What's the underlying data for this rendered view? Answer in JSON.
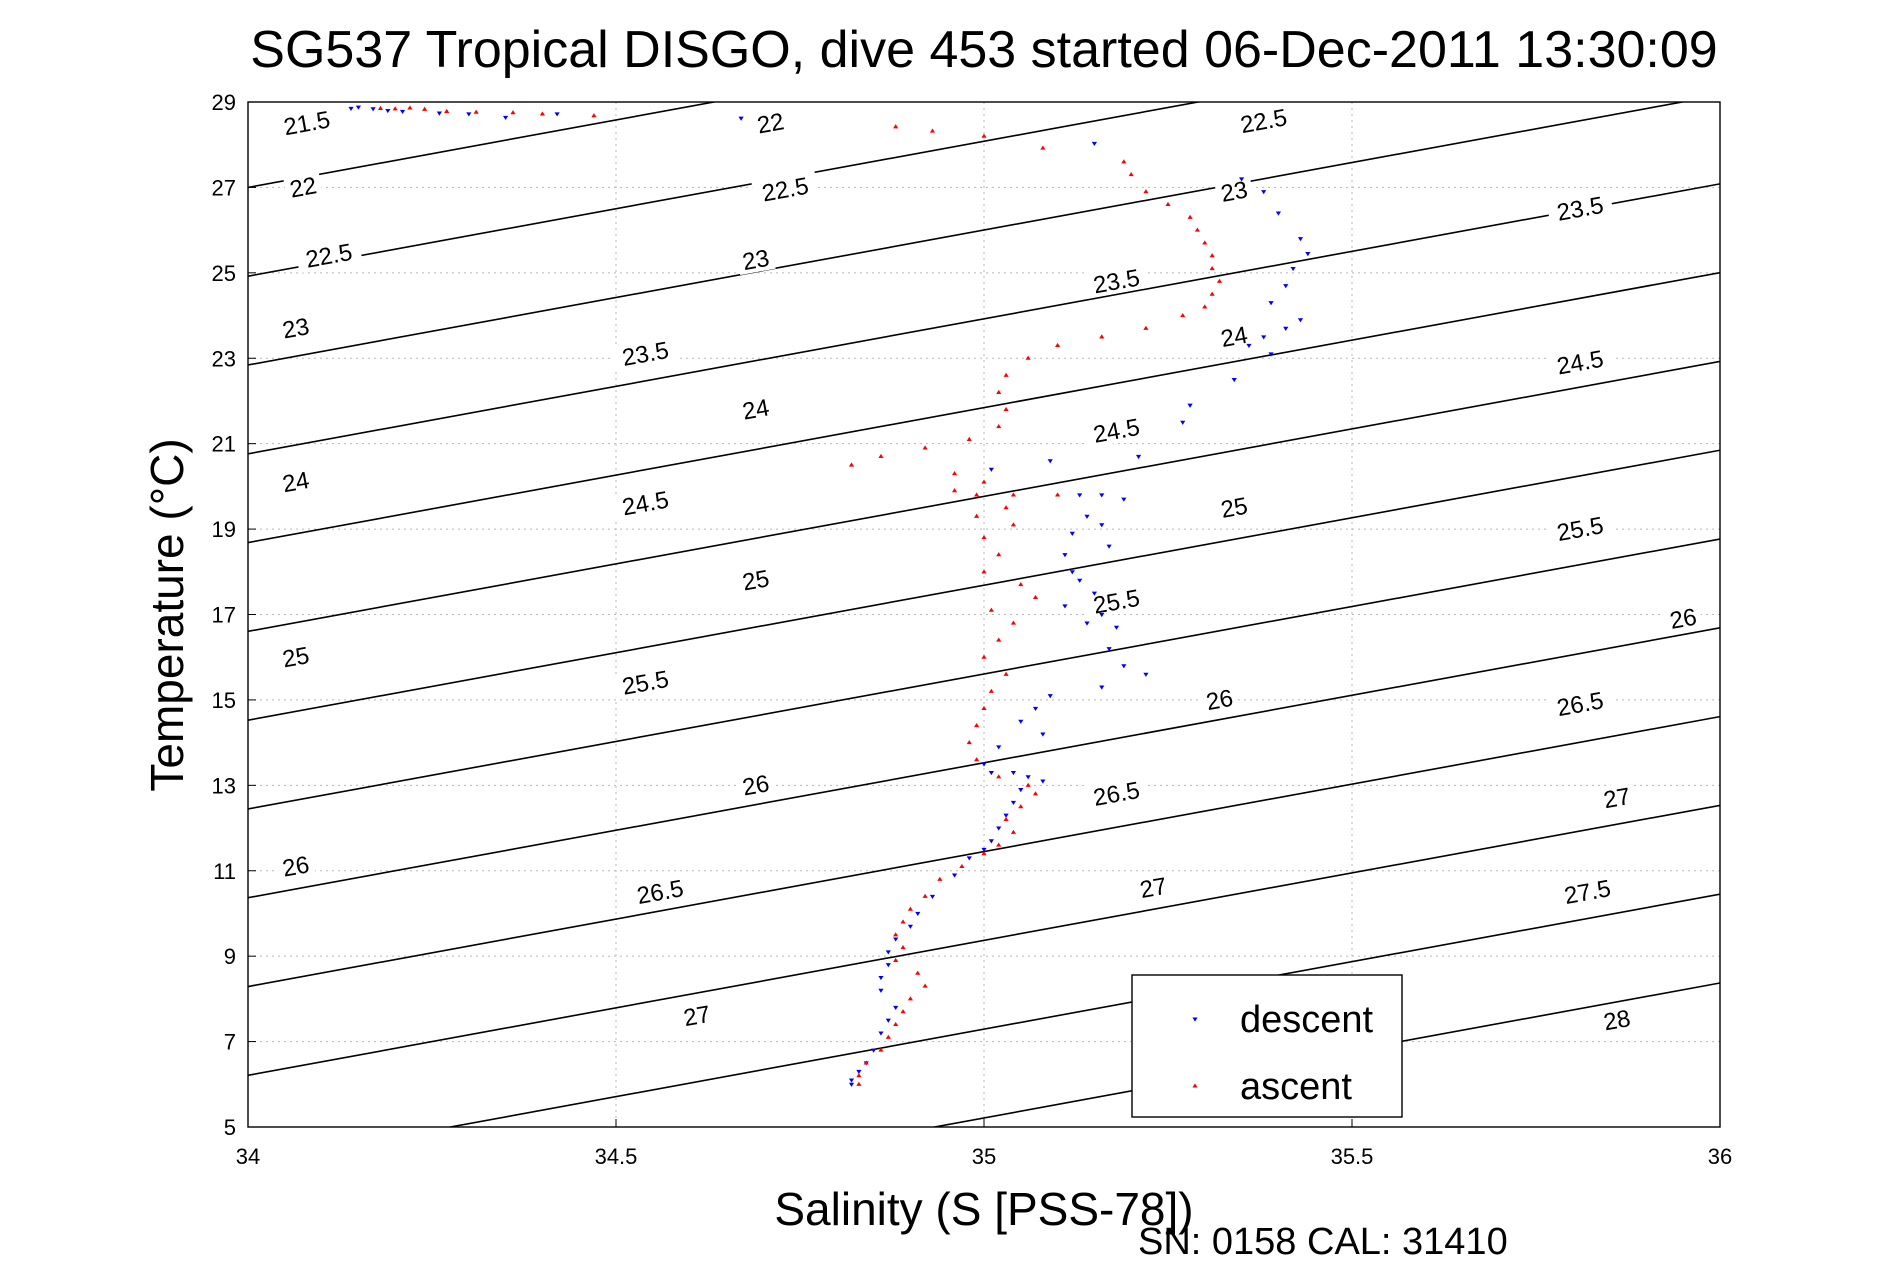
{
  "chart_data": {
    "type": "scatter",
    "title": "SG537 Tropical DISGO, dive 453 started 06-Dec-2011 13:30:09",
    "xlabel": "Salinity (S [PSS-78])",
    "ylabel": "Temperature (°C)",
    "xlim": [
      34,
      36
    ],
    "ylim": [
      5,
      29
    ],
    "xticks": [
      34,
      34.5,
      35,
      35.5,
      36
    ],
    "xtick_labels": [
      "34",
      "34.5",
      "35",
      "35.5",
      "36"
    ],
    "yticks": [
      5,
      7,
      9,
      11,
      13,
      15,
      17,
      19,
      21,
      23,
      25,
      27,
      29
    ],
    "ytick_labels": [
      "5",
      "7",
      "9",
      "11",
      "13",
      "15",
      "17",
      "19",
      "21",
      "23",
      "25",
      "27",
      "29"
    ],
    "grid": true,
    "legend": {
      "placement": "lower-right",
      "entries": [
        {
          "label": "descent",
          "color": "#0000ff",
          "marker": "triangle-down"
        },
        {
          "label": "ascent",
          "color": "#ff0000",
          "marker": "triangle-up"
        }
      ]
    },
    "contours": {
      "description": "potential density (sigma-theta) isopycnals",
      "levels": [
        21.5,
        22,
        22.5,
        23,
        23.5,
        24,
        24.5,
        25,
        25.5,
        26,
        26.5,
        27,
        27.5,
        28
      ],
      "line_color": "#000000",
      "labels": [
        {
          "text": "21.5",
          "s": 34.08,
          "t": 28.5
        },
        {
          "text": "22",
          "s": 34.075,
          "t": 27.0
        },
        {
          "text": "22",
          "s": 34.71,
          "t": 28.5
        },
        {
          "text": "22.5",
          "s": 34.11,
          "t": 25.4
        },
        {
          "text": "22.5",
          "s": 34.73,
          "t": 26.95
        },
        {
          "text": "22.5",
          "s": 35.38,
          "t": 28.55
        },
        {
          "text": "23",
          "s": 34.065,
          "t": 23.7
        },
        {
          "text": "23",
          "s": 34.69,
          "t": 25.3
        },
        {
          "text": "23",
          "s": 35.34,
          "t": 26.9
        },
        {
          "text": "23.5",
          "s": 34.54,
          "t": 23.1
        },
        {
          "text": "23.5",
          "s": 35.18,
          "t": 24.8
        },
        {
          "text": "23.5",
          "s": 35.81,
          "t": 26.5
        },
        {
          "text": "24",
          "s": 34.065,
          "t": 20.1
        },
        {
          "text": "24",
          "s": 34.69,
          "t": 21.8
        },
        {
          "text": "24",
          "s": 35.34,
          "t": 23.5
        },
        {
          "text": "24.5",
          "s": 34.54,
          "t": 19.6
        },
        {
          "text": "24.5",
          "s": 35.18,
          "t": 21.3
        },
        {
          "text": "24.5",
          "s": 35.81,
          "t": 22.9
        },
        {
          "text": "25",
          "s": 34.065,
          "t": 16.0
        },
        {
          "text": "25",
          "s": 34.69,
          "t": 17.8
        },
        {
          "text": "25",
          "s": 35.34,
          "t": 19.5
        },
        {
          "text": "25.5",
          "s": 34.54,
          "t": 15.4
        },
        {
          "text": "25.5",
          "s": 35.18,
          "t": 17.3
        },
        {
          "text": "25.5",
          "s": 35.81,
          "t": 19.0
        },
        {
          "text": "26",
          "s": 34.065,
          "t": 11.1
        },
        {
          "text": "26",
          "s": 34.69,
          "t": 13.0
        },
        {
          "text": "26",
          "s": 35.32,
          "t": 15.0
        },
        {
          "text": "26",
          "s": 35.95,
          "t": 16.9
        },
        {
          "text": "26.5",
          "s": 34.56,
          "t": 10.5
        },
        {
          "text": "26.5",
          "s": 35.18,
          "t": 12.8
        },
        {
          "text": "26.5",
          "s": 35.81,
          "t": 14.9
        },
        {
          "text": "27",
          "s": 34.61,
          "t": 7.6
        },
        {
          "text": "27",
          "s": 35.23,
          "t": 10.6
        },
        {
          "text": "27",
          "s": 35.86,
          "t": 12.7
        },
        {
          "text": "27.5",
          "s": 35.82,
          "t": 10.5
        },
        {
          "text": "28",
          "s": 35.86,
          "t": 7.5
        }
      ]
    },
    "series": [
      {
        "name": "descent",
        "color": "#0000ff",
        "marker": "triangle-down",
        "points": [
          [
            34.14,
            28.85
          ],
          [
            34.15,
            28.88
          ],
          [
            34.17,
            28.84
          ],
          [
            34.19,
            28.8
          ],
          [
            34.21,
            28.78
          ],
          [
            34.26,
            28.74
          ],
          [
            34.3,
            28.72
          ],
          [
            34.35,
            28.64
          ],
          [
            34.42,
            28.72
          ],
          [
            34.67,
            28.62
          ],
          [
            35.15,
            28.03
          ],
          [
            35.35,
            27.2
          ],
          [
            35.38,
            26.9
          ],
          [
            35.4,
            26.4
          ],
          [
            35.43,
            25.8
          ],
          [
            35.44,
            25.45
          ],
          [
            35.42,
            25.1
          ],
          [
            35.41,
            24.7
          ],
          [
            35.39,
            24.3
          ],
          [
            35.43,
            23.9
          ],
          [
            35.41,
            23.7
          ],
          [
            35.38,
            23.5
          ],
          [
            35.36,
            23.3
          ],
          [
            35.39,
            23.1
          ],
          [
            35.34,
            22.5
          ],
          [
            35.28,
            21.9
          ],
          [
            35.27,
            21.5
          ],
          [
            35.21,
            20.7
          ],
          [
            35.09,
            20.6
          ],
          [
            35.01,
            20.4
          ],
          [
            35.13,
            19.8
          ],
          [
            35.16,
            19.8
          ],
          [
            35.19,
            19.7
          ],
          [
            35.14,
            19.3
          ],
          [
            35.16,
            19.1
          ],
          [
            35.12,
            18.9
          ],
          [
            35.17,
            18.6
          ],
          [
            35.11,
            18.4
          ],
          [
            35.12,
            18.0
          ],
          [
            35.13,
            17.8
          ],
          [
            35.15,
            17.5
          ],
          [
            35.11,
            17.2
          ],
          [
            35.16,
            17.0
          ],
          [
            35.14,
            16.8
          ],
          [
            35.18,
            16.7
          ],
          [
            35.17,
            16.2
          ],
          [
            35.19,
            15.8
          ],
          [
            35.22,
            15.6
          ],
          [
            35.16,
            15.3
          ],
          [
            35.09,
            15.1
          ],
          [
            35.07,
            14.8
          ],
          [
            35.05,
            14.5
          ],
          [
            35.08,
            14.2
          ],
          [
            35.02,
            13.9
          ],
          [
            35.0,
            13.5
          ],
          [
            35.01,
            13.3
          ],
          [
            35.04,
            13.3
          ],
          [
            35.06,
            13.2
          ],
          [
            35.08,
            13.1
          ],
          [
            35.05,
            12.9
          ],
          [
            35.04,
            12.6
          ],
          [
            35.03,
            12.3
          ],
          [
            35.02,
            12.0
          ],
          [
            35.01,
            11.7
          ],
          [
            35.0,
            11.5
          ],
          [
            34.98,
            11.3
          ],
          [
            34.96,
            10.9
          ],
          [
            34.93,
            10.4
          ],
          [
            34.91,
            10.0
          ],
          [
            34.9,
            9.7
          ],
          [
            34.88,
            9.4
          ],
          [
            34.87,
            9.1
          ],
          [
            34.87,
            8.8
          ],
          [
            34.86,
            8.5
          ],
          [
            34.86,
            8.2
          ],
          [
            34.88,
            7.8
          ],
          [
            34.87,
            7.5
          ],
          [
            34.86,
            7.2
          ],
          [
            34.85,
            6.8
          ],
          [
            34.84,
            6.5
          ],
          [
            34.83,
            6.3
          ],
          [
            34.82,
            6.1
          ],
          [
            34.82,
            6.0
          ]
        ]
      },
      {
        "name": "ascent",
        "color": "#ff0000",
        "marker": "triangle-up",
        "points": [
          [
            34.18,
            28.85
          ],
          [
            34.2,
            28.84
          ],
          [
            34.22,
            28.86
          ],
          [
            34.24,
            28.83
          ],
          [
            34.27,
            28.78
          ],
          [
            34.31,
            28.76
          ],
          [
            34.36,
            28.75
          ],
          [
            34.4,
            28.72
          ],
          [
            34.47,
            28.68
          ],
          [
            34.88,
            28.42
          ],
          [
            34.93,
            28.32
          ],
          [
            35.0,
            28.2
          ],
          [
            35.08,
            27.92
          ],
          [
            35.19,
            27.6
          ],
          [
            35.2,
            27.3
          ],
          [
            35.22,
            26.9
          ],
          [
            35.25,
            26.6
          ],
          [
            35.28,
            26.3
          ],
          [
            35.29,
            26.0
          ],
          [
            35.3,
            25.7
          ],
          [
            35.31,
            25.4
          ],
          [
            35.31,
            25.1
          ],
          [
            35.32,
            24.8
          ],
          [
            35.31,
            24.5
          ],
          [
            35.3,
            24.2
          ],
          [
            35.27,
            24.0
          ],
          [
            35.22,
            23.7
          ],
          [
            35.16,
            23.5
          ],
          [
            35.1,
            23.3
          ],
          [
            35.06,
            23.0
          ],
          [
            35.03,
            22.6
          ],
          [
            35.02,
            22.2
          ],
          [
            35.03,
            21.8
          ],
          [
            35.02,
            21.4
          ],
          [
            34.98,
            21.1
          ],
          [
            34.92,
            20.9
          ],
          [
            34.86,
            20.7
          ],
          [
            34.82,
            20.5
          ],
          [
            34.96,
            20.3
          ],
          [
            35.0,
            20.1
          ],
          [
            34.96,
            19.9
          ],
          [
            34.99,
            19.8
          ],
          [
            35.04,
            19.8
          ],
          [
            35.1,
            19.8
          ],
          [
            35.03,
            19.5
          ],
          [
            34.99,
            19.3
          ],
          [
            35.04,
            19.1
          ],
          [
            35.0,
            18.8
          ],
          [
            35.02,
            18.4
          ],
          [
            35.0,
            18.0
          ],
          [
            35.05,
            17.7
          ],
          [
            35.07,
            17.4
          ],
          [
            35.01,
            17.1
          ],
          [
            35.04,
            16.8
          ],
          [
            35.02,
            16.4
          ],
          [
            35.0,
            16.0
          ],
          [
            35.03,
            15.6
          ],
          [
            35.01,
            15.2
          ],
          [
            35.0,
            14.8
          ],
          [
            34.99,
            14.4
          ],
          [
            34.98,
            14.0
          ],
          [
            34.99,
            13.6
          ],
          [
            35.02,
            13.2
          ],
          [
            35.06,
            13.0
          ],
          [
            35.07,
            12.8
          ],
          [
            35.05,
            12.5
          ],
          [
            35.03,
            12.2
          ],
          [
            35.04,
            11.9
          ],
          [
            35.02,
            11.6
          ],
          [
            35.0,
            11.4
          ],
          [
            34.97,
            11.1
          ],
          [
            34.94,
            10.8
          ],
          [
            34.92,
            10.4
          ],
          [
            34.9,
            10.1
          ],
          [
            34.89,
            9.8
          ],
          [
            34.88,
            9.5
          ],
          [
            34.89,
            9.2
          ],
          [
            34.88,
            8.9
          ],
          [
            34.91,
            8.6
          ],
          [
            34.92,
            8.3
          ],
          [
            34.9,
            8.0
          ],
          [
            34.89,
            7.7
          ],
          [
            34.88,
            7.4
          ],
          [
            34.87,
            7.1
          ],
          [
            34.86,
            6.8
          ],
          [
            34.84,
            6.5
          ],
          [
            34.83,
            6.2
          ],
          [
            34.83,
            6.0
          ]
        ]
      }
    ]
  },
  "footer": {
    "sn_cal": "SN: 0158  CAL: 31410"
  }
}
